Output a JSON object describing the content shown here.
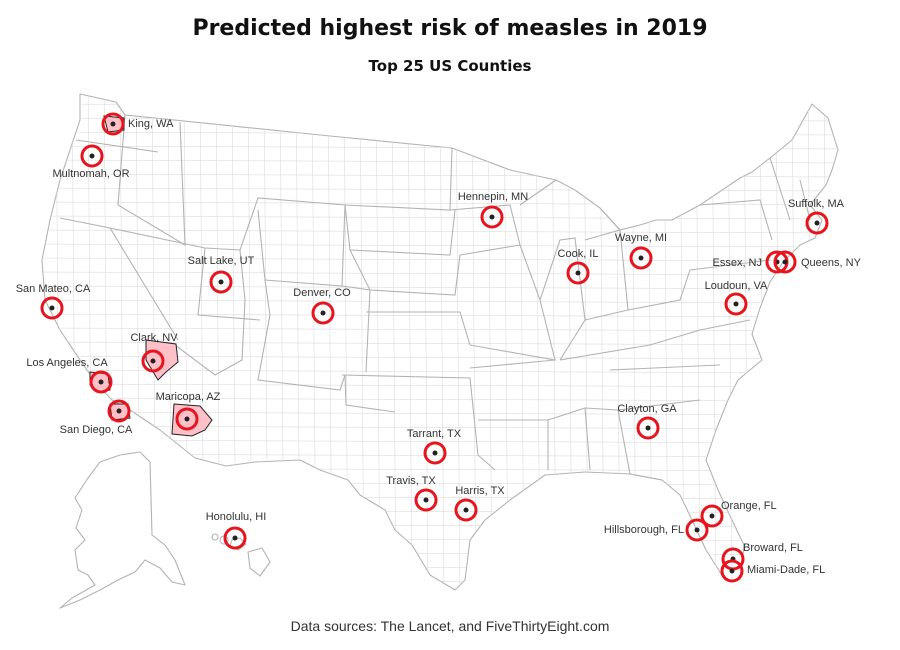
{
  "title": "Predicted highest risk of measles in 2019",
  "subtitle": "Top 25 US Counties",
  "footnote": "Data sources:  The Lancet, and  FiveThirtyEight.com",
  "colors": {
    "marker": "#e8141d",
    "highlight_fill": "#ffc0c8",
    "state_border": "#b3b3b3",
    "county_border": "#dcdcdc"
  },
  "counties": [
    {
      "name": "King, WA",
      "state": "WA"
    },
    {
      "name": "Multnomah, OR",
      "state": "OR"
    },
    {
      "name": "San Mateo, CA",
      "state": "CA"
    },
    {
      "name": "Los Angeles, CA",
      "state": "CA"
    },
    {
      "name": "San Diego, CA",
      "state": "CA"
    },
    {
      "name": "Clark, NV",
      "state": "NV"
    },
    {
      "name": "Maricopa, AZ",
      "state": "AZ"
    },
    {
      "name": "Salt Lake, UT",
      "state": "UT"
    },
    {
      "name": "Denver, CO",
      "state": "CO"
    },
    {
      "name": "Honolulu, HI",
      "state": "HI"
    },
    {
      "name": "Tarrant, TX",
      "state": "TX"
    },
    {
      "name": "Travis, TX",
      "state": "TX"
    },
    {
      "name": "Harris, TX",
      "state": "TX"
    },
    {
      "name": "Hennepin, MN",
      "state": "MN"
    },
    {
      "name": "Cook, IL",
      "state": "IL"
    },
    {
      "name": "Wayne, MI",
      "state": "MI"
    },
    {
      "name": "Clayton, GA",
      "state": "GA"
    },
    {
      "name": "Suffolk, MA",
      "state": "MA"
    },
    {
      "name": "Essex, NJ",
      "state": "NJ"
    },
    {
      "name": "Queens, NY",
      "state": "NY"
    },
    {
      "name": "Loudoun, VA",
      "state": "VA"
    },
    {
      "name": "Orange, FL",
      "state": "FL"
    },
    {
      "name": "Hillsborough, FL",
      "state": "FL"
    },
    {
      "name": "Broward, FL",
      "state": "FL"
    },
    {
      "name": "Miami-Dade, FL",
      "state": "FL"
    }
  ]
}
